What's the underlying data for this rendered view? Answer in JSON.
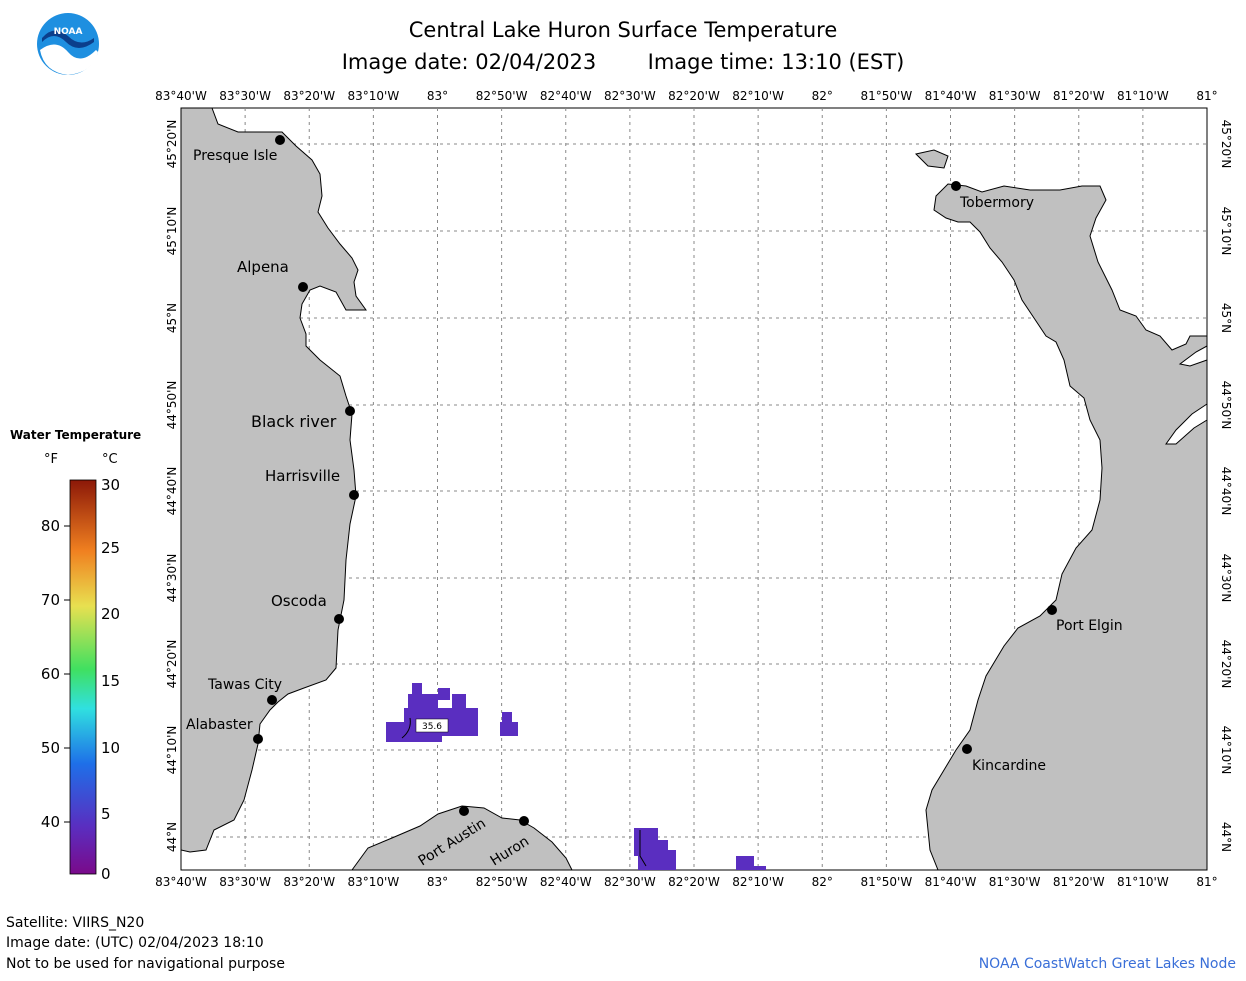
{
  "title": "Central Lake Huron Surface Temperature",
  "subtitle_date": "Image date: 02/04/2023",
  "subtitle_time": "Image time: 13:10 (EST)",
  "lon_ticks": [
    "83°40'W",
    "83°30'W",
    "83°20'W",
    "83°10'W",
    "83°",
    "82°50'W",
    "82°40'W",
    "82°30'W",
    "82°20'W",
    "82°10'W",
    "82°",
    "81°50'W",
    "81°40'W",
    "81°30'W",
    "81°20'W",
    "81°10'W",
    "81°"
  ],
  "lat_ticks": [
    "45°20'N",
    "45°10'N",
    "45°N",
    "44°50'N",
    "44°40'N",
    "44°30'N",
    "44°20'N",
    "44°10'N",
    "44°N"
  ],
  "places": [
    {
      "name": "Presque Isle"
    },
    {
      "name": "Alpena"
    },
    {
      "name": "Black river"
    },
    {
      "name": "Harrisville"
    },
    {
      "name": "Oscoda"
    },
    {
      "name": "Tawas City"
    },
    {
      "name": "Alabaster"
    },
    {
      "name": "Port Austin"
    },
    {
      "name": "Huron"
    },
    {
      "name": "Tobermory"
    },
    {
      "name": "Port Elgin"
    },
    {
      "name": "Kincardine"
    }
  ],
  "contour_label": "35.6",
  "legend": {
    "title": "Water Temperature",
    "unit_f": "°F",
    "unit_c": "°C",
    "f_ticks": [
      "80",
      "70",
      "60",
      "50",
      "40"
    ],
    "c_ticks": [
      "30",
      "25",
      "20",
      "15",
      "10",
      "5",
      "0"
    ]
  },
  "colors": {
    "land": "#c0c0c0",
    "water_cold": "#5a2ec0",
    "credit": "#3a6fd8"
  },
  "footer": {
    "satellite": "Satellite: VIIRS_N20",
    "utc_date": "Image date: (UTC) 02/04/2023  18:10",
    "disclaimer": "Not to be used for navigational purpose",
    "credit": "NOAA CoastWatch Great Lakes Node"
  }
}
